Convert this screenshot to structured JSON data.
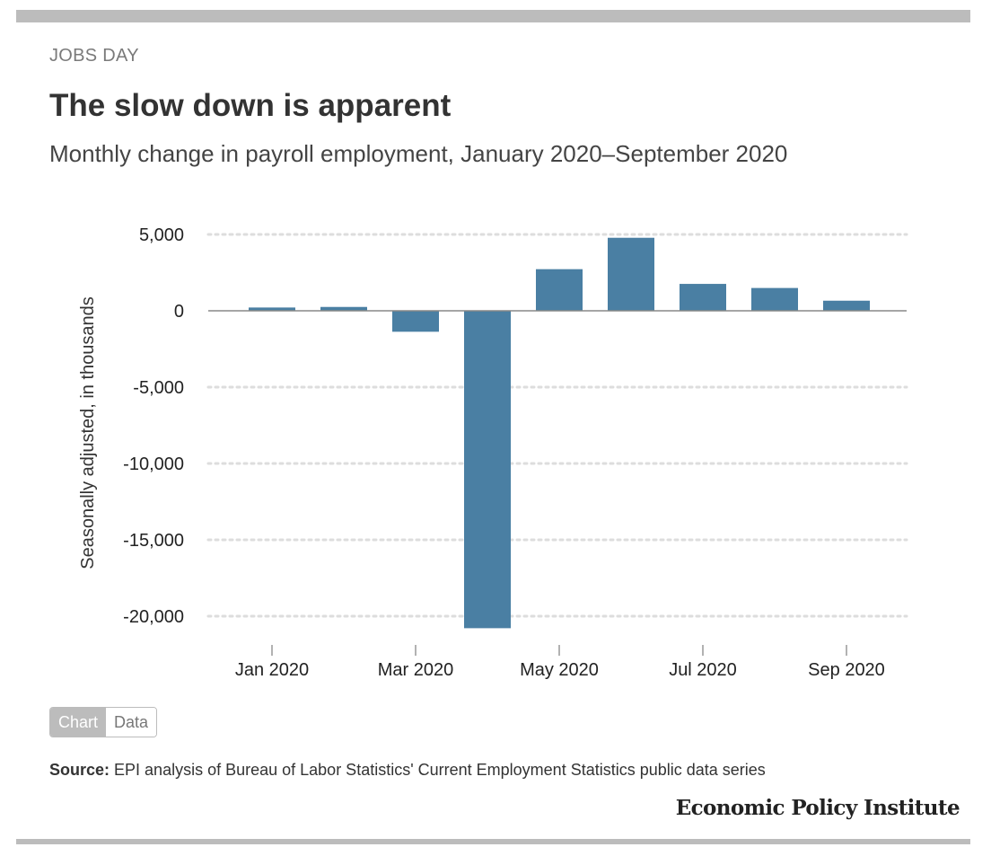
{
  "header": {
    "kicker": "JOBS DAY",
    "title": "The slow down is apparent",
    "subtitle": "Monthly change in payroll employment, January 2020–September 2020"
  },
  "colors": {
    "bar": "#4a7fa3",
    "grid": "#dddddd",
    "zero_line": "#888888",
    "rule": "#bcbcbc"
  },
  "chart_data": {
    "type": "bar",
    "title": "The slow down is apparent",
    "ylabel": "Seasonally adjusted, in thousands",
    "xlabel": "",
    "categories": [
      "Jan 2020",
      "Feb 2020",
      "Mar 2020",
      "Apr 2020",
      "May 2020",
      "Jun 2020",
      "Jul 2020",
      "Aug 2020",
      "Sep 2020"
    ],
    "values": [
      214,
      251,
      -1373,
      -20787,
      2725,
      4781,
      1761,
      1493,
      661
    ],
    "ylim": [
      -21000,
      5500
    ],
    "yticks": [
      5000,
      0,
      -5000,
      -10000,
      -15000,
      -20000
    ],
    "ytick_labels": [
      "5,000",
      "0",
      "-5,000",
      "-10,000",
      "-15,000",
      "-20,000"
    ],
    "xtick_labels": [
      {
        "index": 0,
        "label": "Jan 2020"
      },
      {
        "index": 2,
        "label": "Mar 2020"
      },
      {
        "index": 4,
        "label": "May 2020"
      },
      {
        "index": 6,
        "label": "Jul 2020"
      },
      {
        "index": 8,
        "label": "Sep 2020"
      }
    ],
    "grid": true
  },
  "toggle": {
    "chart_label": "Chart",
    "data_label": "Data"
  },
  "source": {
    "label": "Source:",
    "text": " EPI analysis of Bureau of Labor Statistics' Current Employment Statistics public data series"
  },
  "brand": "Economic Policy Institute"
}
